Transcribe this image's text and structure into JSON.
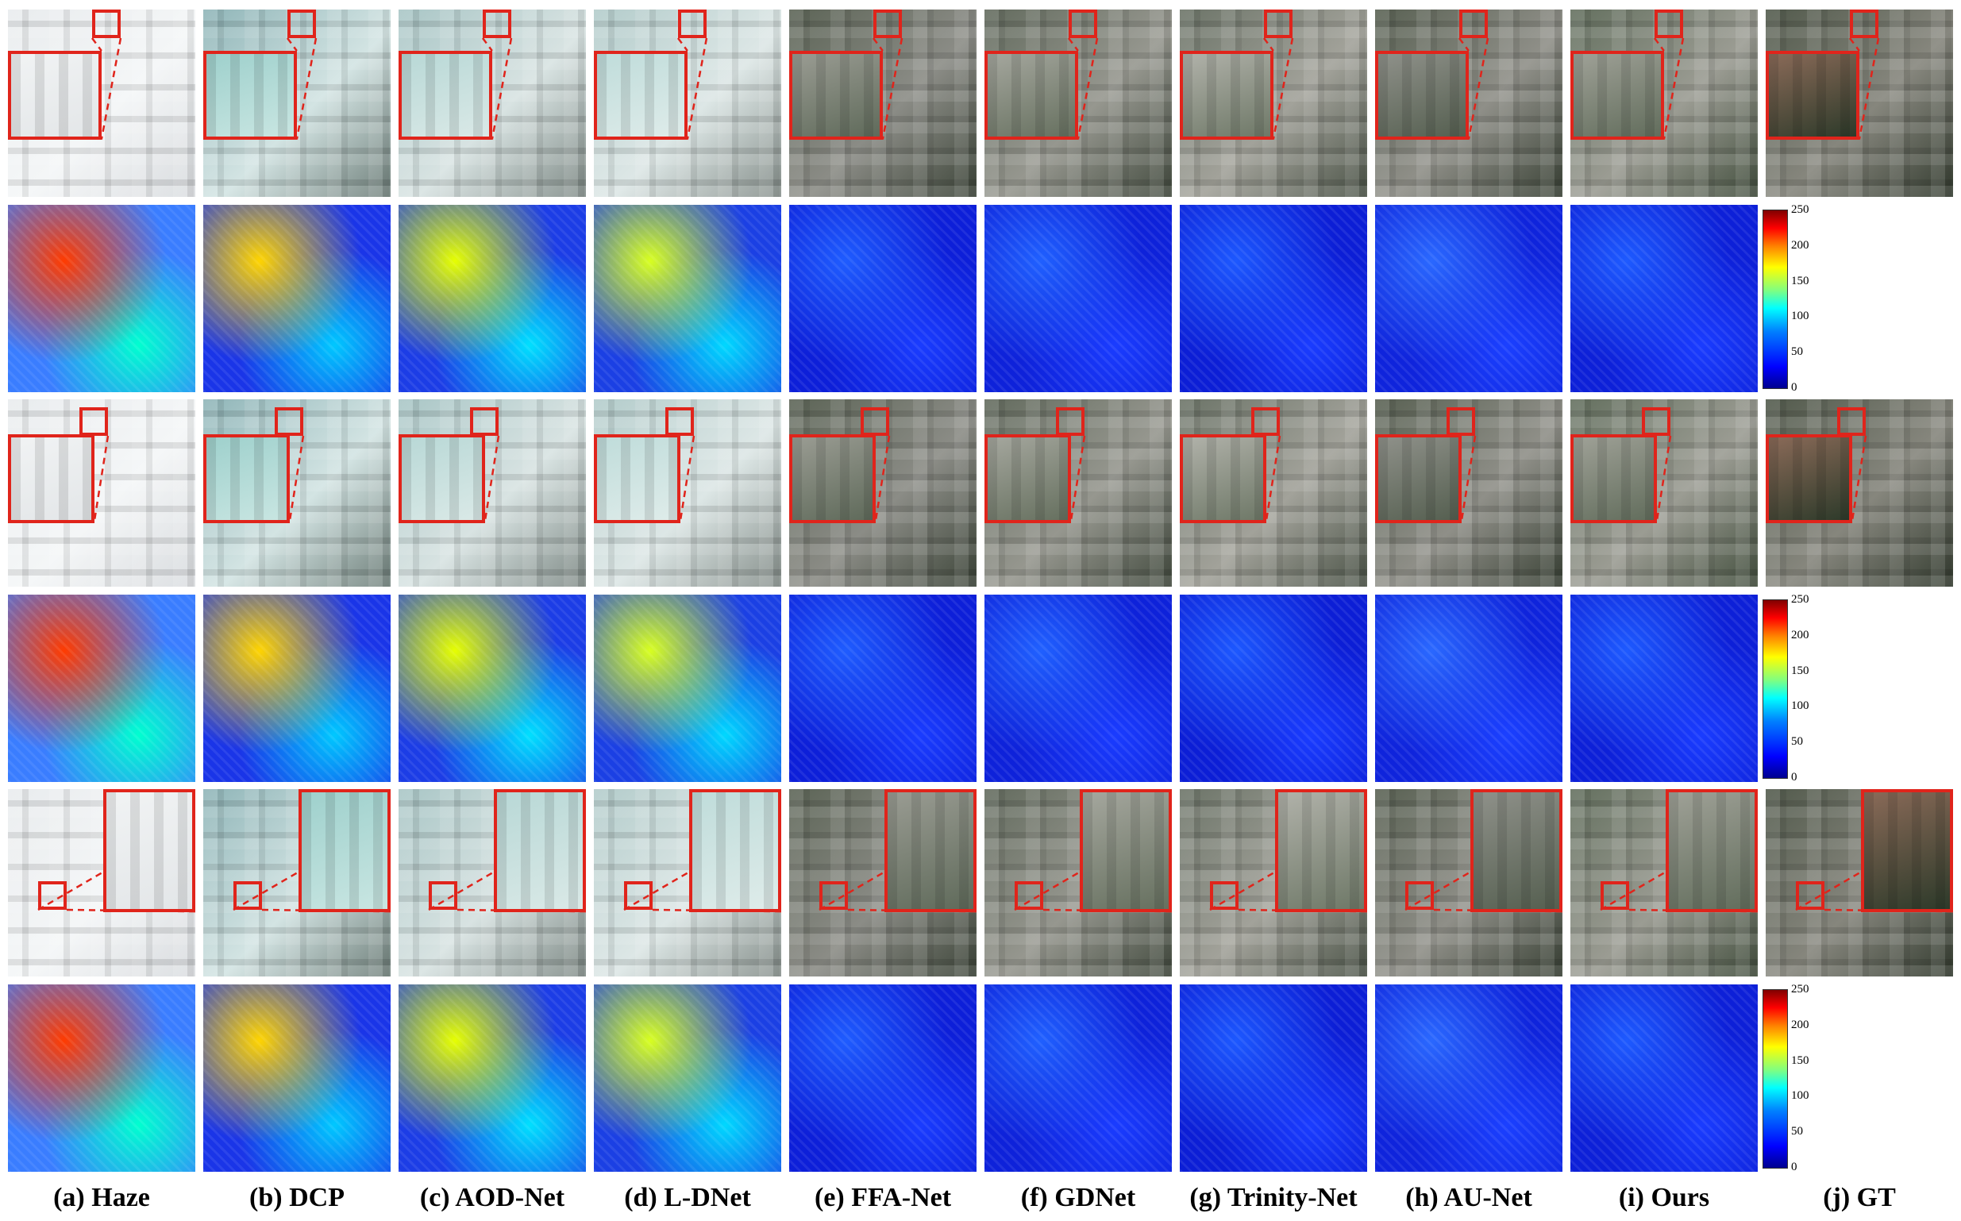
{
  "columns": [
    {
      "label": "(a) Haze"
    },
    {
      "label": "(b) DCP"
    },
    {
      "label": "(c) AOD-Net"
    },
    {
      "label": "(d) L-DNet"
    },
    {
      "label": "(e) FFA-Net"
    },
    {
      "label": "(f) GDNet"
    },
    {
      "label": "(g) Trinity-Net"
    },
    {
      "label": "(h) AU-Net"
    },
    {
      "label": "(i) Ours"
    },
    {
      "label": "(j) GT"
    }
  ],
  "colorbar": {
    "ticks": [
      "250",
      "200",
      "150",
      "100",
      "50",
      "0"
    ],
    "colors": {
      "low": "#00008f",
      "mid": "#00ffff",
      "high": "#800000"
    }
  },
  "colors": {
    "zoom_box": "#e0241b",
    "background": "#ffffff"
  }
}
